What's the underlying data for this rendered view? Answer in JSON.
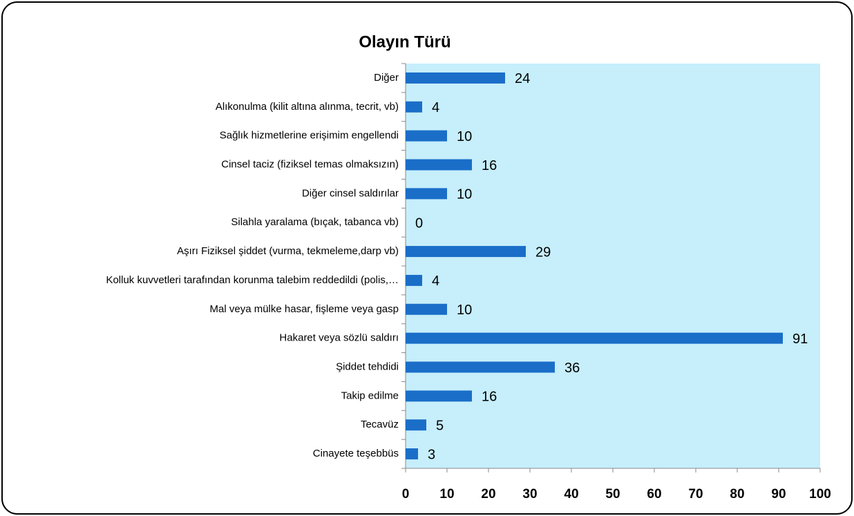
{
  "chart_data": {
    "type": "bar",
    "orientation": "horizontal",
    "title": "Olayın Türü",
    "categories": [
      "Diğer",
      "Alıkonulma (kilit altına alınma, tecrit, vb)",
      "Sağlık hizmetlerine erişimim engellendi",
      "Cinsel taciz (fiziksel temas olmaksızın)",
      "Diğer cinsel saldırılar",
      "Silahla yaralama (bıçak, tabanca vb)",
      "Aşırı Fiziksel şiddet (vurma, tekmeleme,darp vb)",
      "Kolluk kuvvetleri tarafından korunma talebim reddedildi (polis,…",
      "Mal veya mülke hasar, fişleme veya gasp",
      "Hakaret veya sözlü saldırı",
      "Şiddet tehdidi",
      "Takip edilme",
      "Tecavüz",
      "Cinayete teşebbüs"
    ],
    "values": [
      24,
      4,
      10,
      16,
      10,
      0,
      29,
      4,
      10,
      91,
      36,
      16,
      5,
      3
    ],
    "color": "#1a6ec8",
    "plot_background": "#c6eefb",
    "xlim": [
      0,
      100
    ],
    "xticks": [
      0,
      10,
      20,
      30,
      40,
      50,
      60,
      70,
      80,
      90,
      100
    ],
    "grid": false
  }
}
